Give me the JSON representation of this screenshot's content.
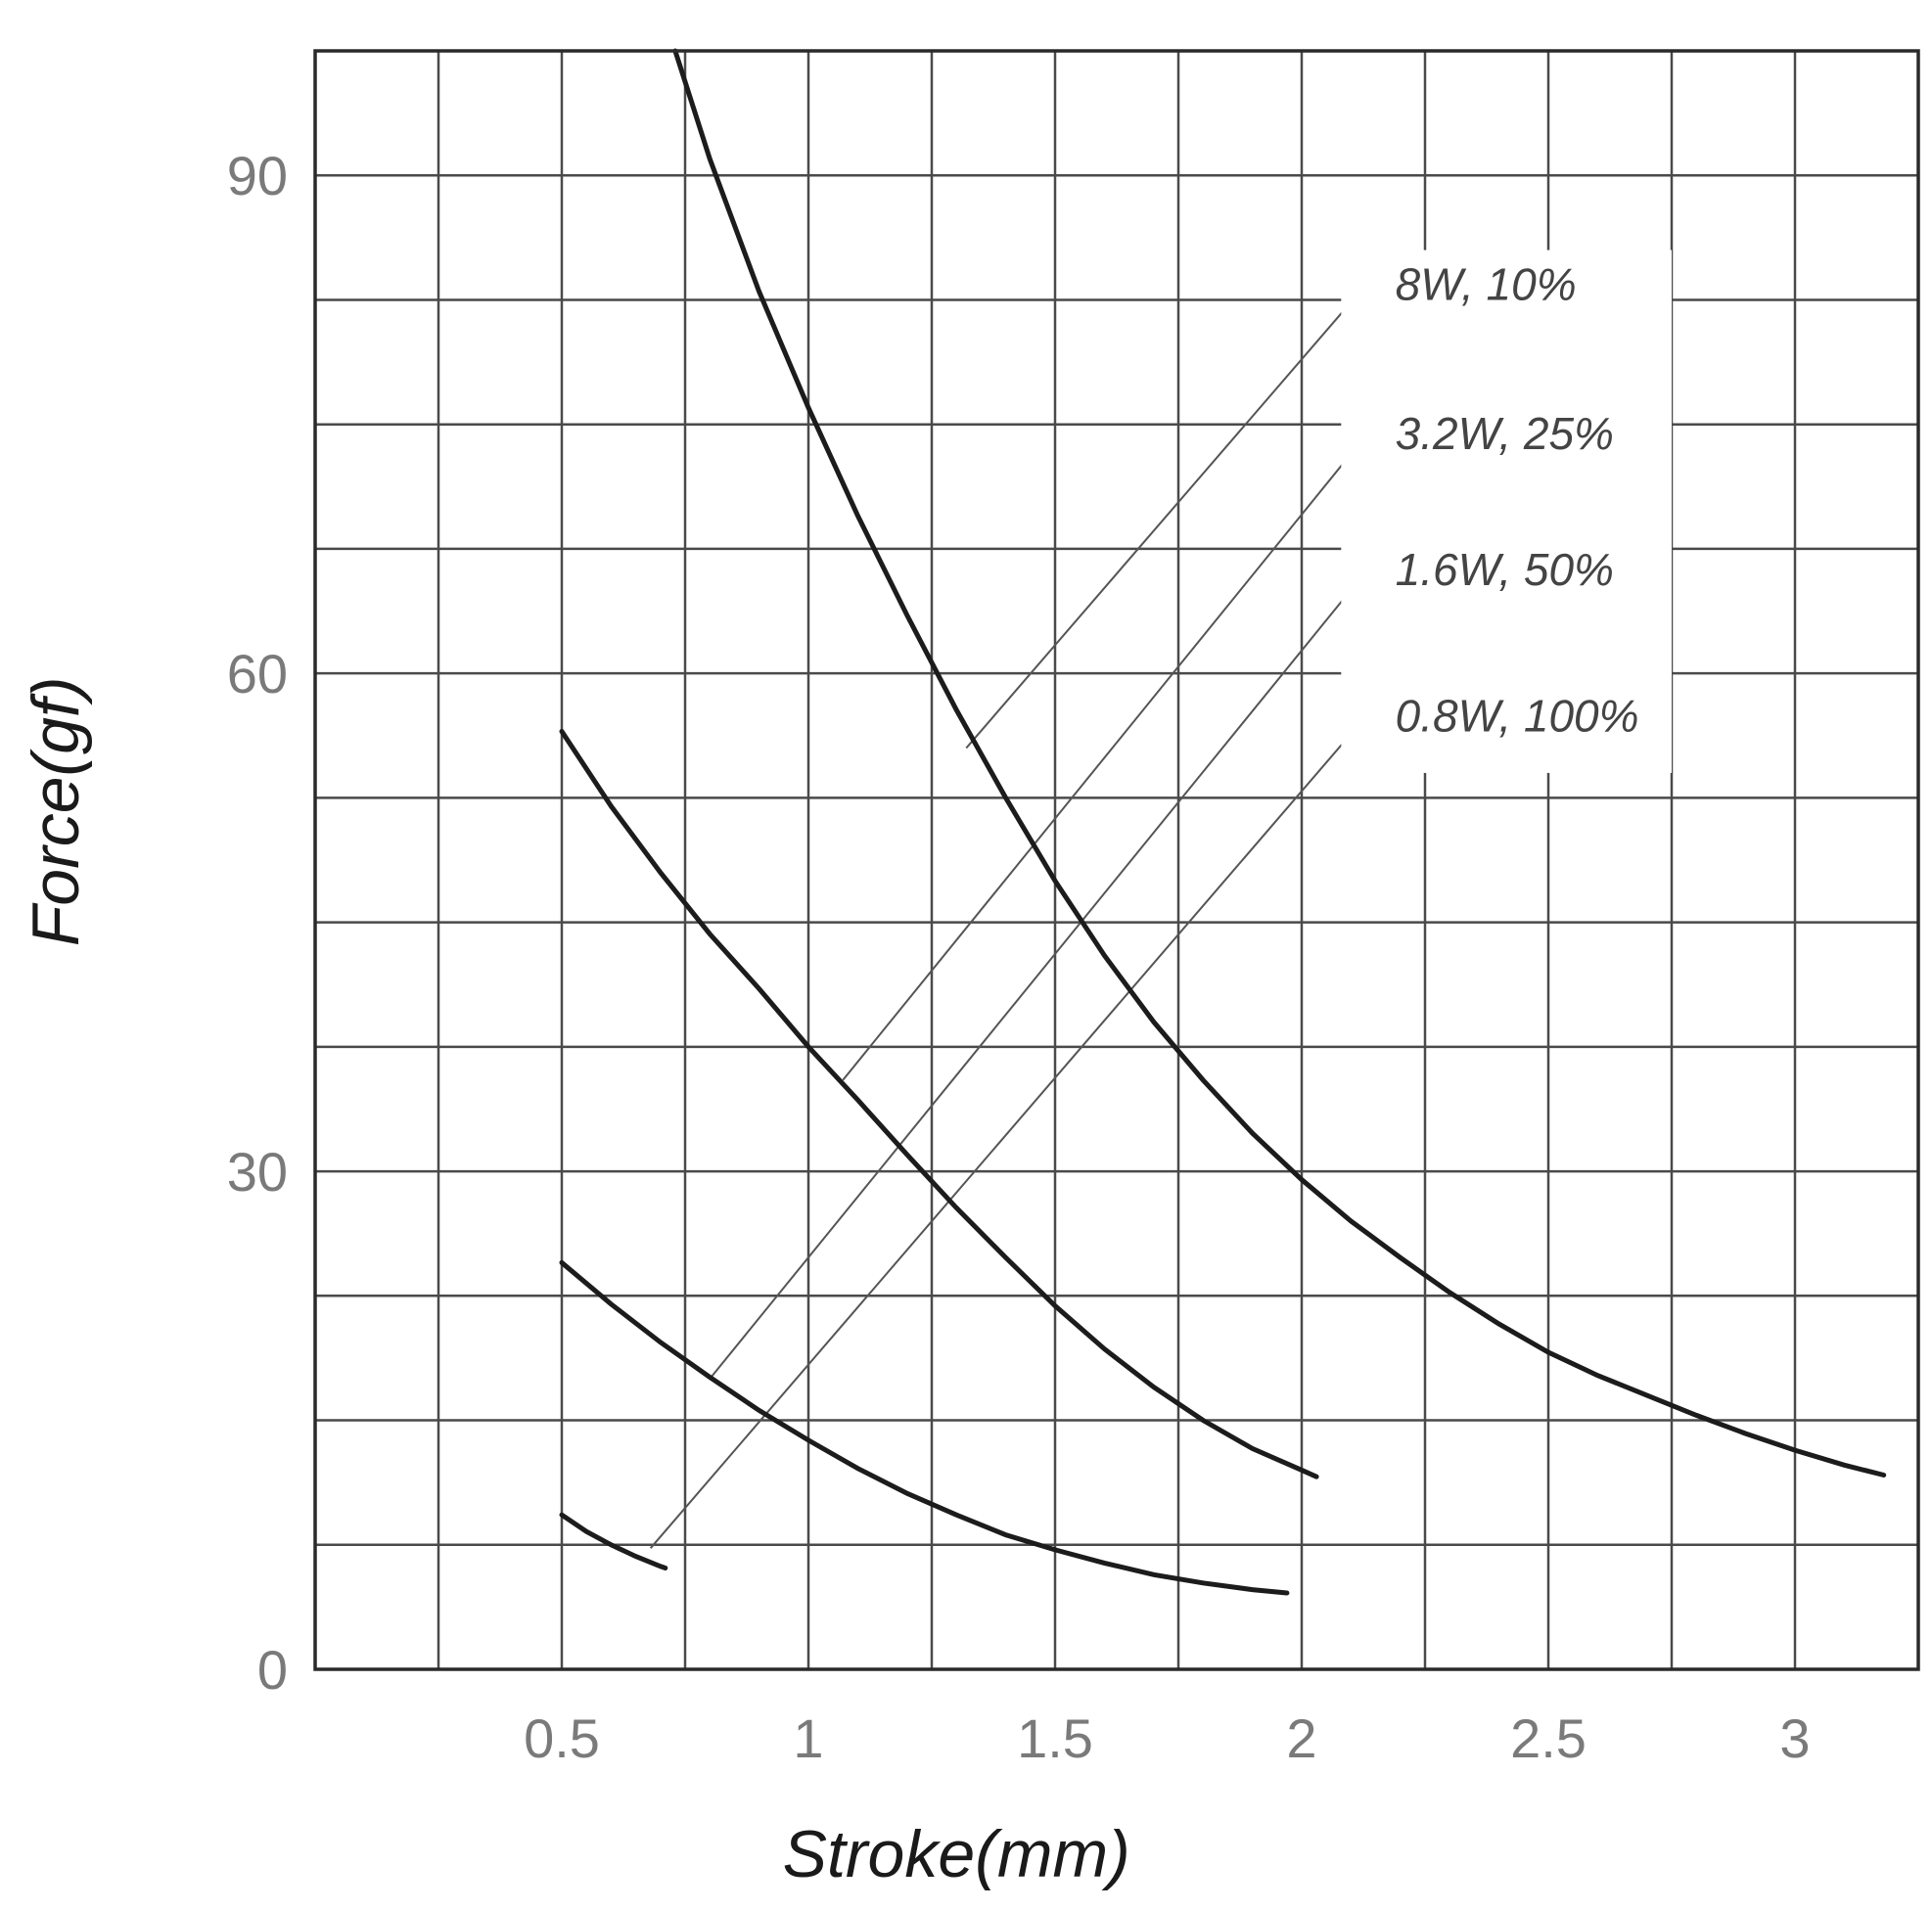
{
  "chart_data": {
    "type": "line",
    "xlabel": "Stroke(mm)",
    "ylabel": "Force(gf)",
    "xlim": [
      0,
      3.25
    ],
    "ylim": [
      0,
      97.5
    ],
    "grid": true,
    "x_ticks": [
      {
        "value": 0.5,
        "label": "0.5"
      },
      {
        "value": 1,
        "label": "1"
      },
      {
        "value": 1.5,
        "label": "1.5"
      },
      {
        "value": 2,
        "label": "2"
      },
      {
        "value": 2.5,
        "label": "2.5"
      },
      {
        "value": 3,
        "label": "3"
      }
    ],
    "y_ticks": [
      {
        "value": 0,
        "label": "0"
      },
      {
        "value": 30,
        "label": "30"
      },
      {
        "value": 60,
        "label": "60"
      },
      {
        "value": 90,
        "label": "90"
      }
    ],
    "series": [
      {
        "name": "8W, 10%",
        "label_anchor": {
          "x": 1.32,
          "y": 55.5
        },
        "points": [
          [
            0.73,
            97.5
          ],
          [
            0.8,
            91
          ],
          [
            0.9,
            83
          ],
          [
            1,
            76
          ],
          [
            1.1,
            69.5
          ],
          [
            1.2,
            63.5
          ],
          [
            1.3,
            57.8
          ],
          [
            1.4,
            52.5
          ],
          [
            1.5,
            47.5
          ],
          [
            1.6,
            43
          ],
          [
            1.7,
            39
          ],
          [
            1.8,
            35.5
          ],
          [
            1.9,
            32.3
          ],
          [
            2,
            29.5
          ],
          [
            2.1,
            27
          ],
          [
            2.2,
            24.8
          ],
          [
            2.3,
            22.7
          ],
          [
            2.4,
            20.8
          ],
          [
            2.5,
            19.1
          ],
          [
            2.6,
            17.7
          ],
          [
            2.7,
            16.5
          ],
          [
            2.8,
            15.3
          ],
          [
            2.9,
            14.2
          ],
          [
            3,
            13.2
          ],
          [
            3.1,
            12.3
          ],
          [
            3.18,
            11.7
          ]
        ]
      },
      {
        "name": "3.2W, 25%",
        "label_anchor": {
          "x": 1.07,
          "y": 35.5
        },
        "points": [
          [
            0.5,
            56.5
          ],
          [
            0.6,
            52
          ],
          [
            0.7,
            48
          ],
          [
            0.8,
            44.3
          ],
          [
            0.9,
            41
          ],
          [
            1,
            37.5
          ],
          [
            1.1,
            34.3
          ],
          [
            1.2,
            31
          ],
          [
            1.3,
            27.8
          ],
          [
            1.4,
            24.8
          ],
          [
            1.5,
            21.9
          ],
          [
            1.6,
            19.3
          ],
          [
            1.7,
            17
          ],
          [
            1.8,
            15
          ],
          [
            1.9,
            13.3
          ],
          [
            2,
            12
          ],
          [
            2.03,
            11.6
          ]
        ]
      },
      {
        "name": "1.6W, 50%",
        "label_anchor": {
          "x": 0.8,
          "y": 17.5
        },
        "points": [
          [
            0.5,
            24.5
          ],
          [
            0.6,
            22
          ],
          [
            0.7,
            19.7
          ],
          [
            0.8,
            17.6
          ],
          [
            0.9,
            15.6
          ],
          [
            1,
            13.8
          ],
          [
            1.1,
            12.1
          ],
          [
            1.2,
            10.6
          ],
          [
            1.3,
            9.3
          ],
          [
            1.4,
            8.1
          ],
          [
            1.5,
            7.2
          ],
          [
            1.6,
            6.4
          ],
          [
            1.7,
            5.7
          ],
          [
            1.8,
            5.2
          ],
          [
            1.9,
            4.8
          ],
          [
            1.97,
            4.6
          ]
        ]
      },
      {
        "name": "0.8W, 100%",
        "label_anchor": {
          "x": 0.68,
          "y": 7.3
        },
        "points": [
          [
            0.5,
            9.3
          ],
          [
            0.55,
            8.3
          ],
          [
            0.6,
            7.5
          ],
          [
            0.65,
            6.8
          ],
          [
            0.7,
            6.2
          ],
          [
            0.71,
            6.1
          ]
        ]
      }
    ]
  }
}
